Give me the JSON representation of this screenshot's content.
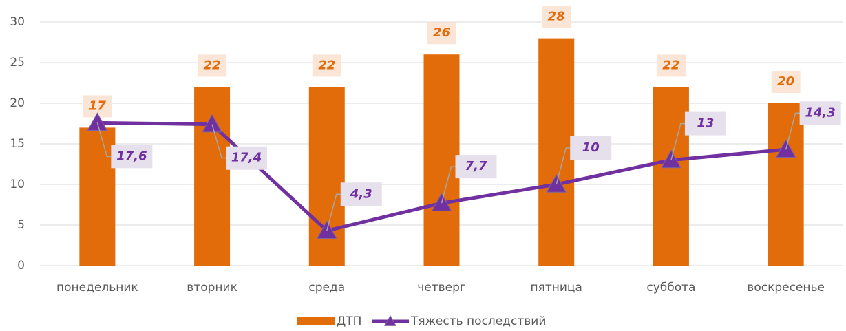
{
  "chart_data": {
    "type": "bar_line",
    "categories": [
      "понедельник",
      "вторник",
      "среда",
      "четверг",
      "пятница",
      "суббота",
      "воскресенье"
    ],
    "series": [
      {
        "name": "ДТП",
        "type": "bar",
        "color": "#e36c0a",
        "values": [
          17,
          22,
          22,
          26,
          28,
          22,
          20
        ]
      },
      {
        "name": "Тяжесть последствий",
        "type": "line",
        "color": "#7030a0",
        "values": [
          17.6,
          17.4,
          4.3,
          7.7,
          10,
          13,
          14.3
        ],
        "value_labels": [
          "17,6",
          "17,4",
          "4,3",
          "7,7",
          "10",
          "13",
          "14,3"
        ]
      }
    ],
    "ylim": [
      0,
      30
    ],
    "yticks": [
      0,
      5,
      10,
      15,
      20,
      25,
      30
    ],
    "grid": true,
    "legend": "bottom"
  }
}
